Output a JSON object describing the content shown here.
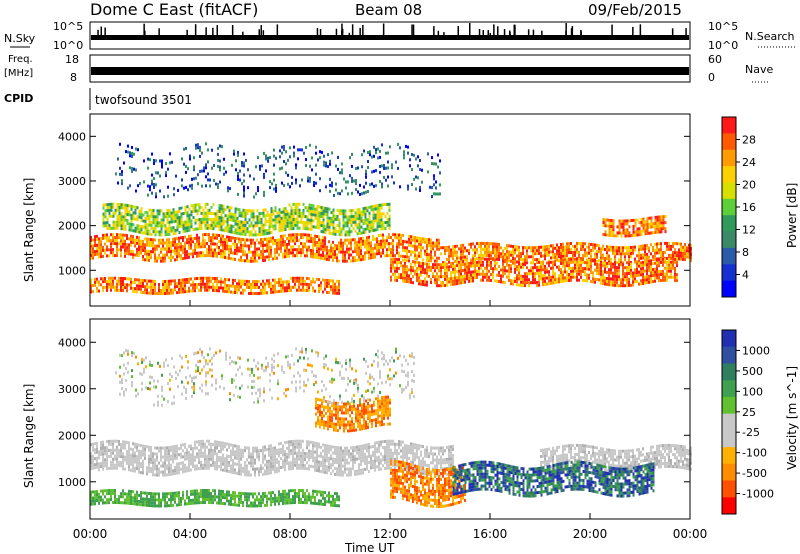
{
  "header": {
    "radar": "Dome C East (fitACF)",
    "beam": "Beam 08",
    "date": "09/Feb/2015"
  },
  "panels": {
    "nsky": {
      "left_label": "N.Sky",
      "right_label": "N.Search",
      "tick_top": "10^5",
      "tick_bottom": "10^0"
    },
    "freq": {
      "left_label_1": "Freq.",
      "left_label_2": "[MHz]",
      "tick_top": "18",
      "tick_bottom": "8",
      "right_tick_top": "60",
      "right_tick_bottom": "0",
      "right_label": "Nave"
    },
    "cpid": {
      "left_label": "CPID",
      "program": "twofsound 3501"
    }
  },
  "power_colorbar": {
    "title": "Power [dB]",
    "ticks": [
      "28",
      "24",
      "20",
      "16",
      "12",
      "8",
      "4"
    ],
    "colors": [
      "#ff1a1a",
      "#ff5a00",
      "#ff9a00",
      "#ffd000",
      "#d8e000",
      "#5ccf3a",
      "#2f9a5a",
      "#3a8a6a",
      "#2a5aa8",
      "#1530d0",
      "#0000ff"
    ]
  },
  "velocity_colorbar": {
    "title": "Velocity [m s^-1]",
    "ticks": [
      "1000",
      "500",
      "100",
      "25",
      "-25",
      "-100",
      "-500",
      "-1000"
    ],
    "colors": [
      "#2030b0",
      "#2f4fa0",
      "#2f7f5f",
      "#3fa04f",
      "#60c030",
      "#c8c8c8",
      "#c8c8c8",
      "#ffb000",
      "#ff8c00",
      "#ff5000",
      "#ff0000"
    ]
  },
  "chart_data": [
    {
      "type": "heatmap",
      "name": "power",
      "ylabel": "Slant Range [km]",
      "yticks": [
        "4000",
        "3000",
        "2000",
        "1000"
      ],
      "ylim_km": [
        200,
        4500
      ],
      "xlim_hours": [
        0,
        24
      ],
      "bands": [
        {
          "start_h": 0.0,
          "end_h": 14.0,
          "center_km": 1550,
          "half_width_km": 250,
          "level": "high"
        },
        {
          "start_h": 14.0,
          "end_h": 24.0,
          "center_km": 1450,
          "half_width_km": 200,
          "level": "high"
        },
        {
          "start_h": 0.0,
          "end_h": 10.0,
          "center_km": 700,
          "half_width_km": 150,
          "level": "high"
        },
        {
          "start_h": 12.0,
          "end_h": 23.5,
          "center_km": 1000,
          "half_width_km": 250,
          "level": "high"
        },
        {
          "start_h": 0.5,
          "end_h": 12.0,
          "center_km": 2200,
          "half_width_km": 300,
          "level": "medium"
        },
        {
          "start_h": 1.0,
          "end_h": 14.0,
          "center_km": 3300,
          "half_width_km": 500,
          "level": "low"
        },
        {
          "start_h": 20.5,
          "end_h": 23.0,
          "center_km": 2050,
          "half_width_km": 200,
          "level": "high"
        }
      ]
    },
    {
      "type": "heatmap",
      "name": "velocity",
      "ylabel": "Slant Range [km]",
      "yticks": [
        "4000",
        "3000",
        "2000",
        "1000"
      ],
      "ylim_km": [
        200,
        4500
      ],
      "xlim_hours": [
        0,
        24
      ],
      "bands": [
        {
          "start_h": 0.0,
          "end_h": 14.5,
          "center_km": 1550,
          "half_width_km": 300,
          "level": "near-zero"
        },
        {
          "start_h": 18.0,
          "end_h": 24.0,
          "center_km": 1550,
          "half_width_km": 250,
          "level": "near-zero"
        },
        {
          "start_h": 0.0,
          "end_h": 10.0,
          "center_km": 700,
          "half_width_km": 150,
          "level": "positive-low"
        },
        {
          "start_h": 12.0,
          "end_h": 15.0,
          "center_km": 1000,
          "half_width_km": 400,
          "level": "negative"
        },
        {
          "start_h": 14.5,
          "end_h": 22.5,
          "center_km": 1100,
          "half_width_km": 300,
          "level": "positive"
        },
        {
          "start_h": 9.0,
          "end_h": 12.0,
          "center_km": 2500,
          "half_width_km": 300,
          "level": "negative"
        },
        {
          "start_h": 1.0,
          "end_h": 13.0,
          "center_km": 3300,
          "half_width_km": 500,
          "level": "sparse"
        }
      ]
    }
  ],
  "xaxis": {
    "ticks": [
      "00:00",
      "04:00",
      "08:00",
      "12:00",
      "16:00",
      "20:00",
      "00:00"
    ],
    "label": "Time UT"
  }
}
